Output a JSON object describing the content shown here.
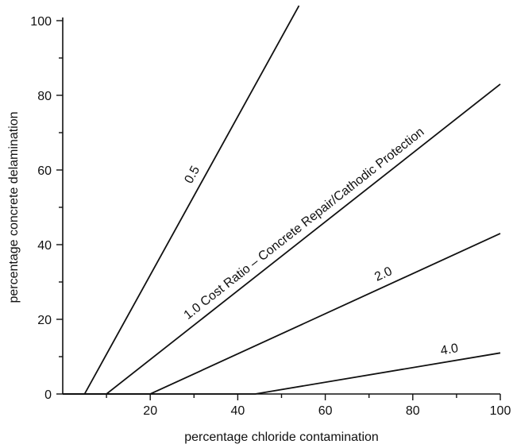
{
  "chart_data": {
    "type": "line",
    "title": "",
    "xlabel": "percentage chloride contamination",
    "ylabel": "percentage concrete delamination",
    "xlim": [
      0,
      100
    ],
    "ylim": [
      0,
      100
    ],
    "x_ticks": [
      20,
      40,
      60,
      80,
      100
    ],
    "y_ticks": [
      0,
      20,
      40,
      60,
      80,
      100
    ],
    "grid": false,
    "series": [
      {
        "name": "0.5",
        "points": [
          [
            0,
            0
          ],
          [
            5,
            0
          ],
          [
            54,
            104
          ]
        ]
      },
      {
        "name": "1.0 Cost Ratio – Concrete Repair/Cathodic Protection",
        "points": [
          [
            0,
            0
          ],
          [
            10,
            0
          ],
          [
            100,
            83
          ]
        ]
      },
      {
        "name": "2.0",
        "points": [
          [
            0,
            0
          ],
          [
            20,
            0
          ],
          [
            100,
            43
          ]
        ]
      },
      {
        "name": "4.0",
        "points": [
          [
            0,
            0
          ],
          [
            44,
            0
          ],
          [
            100,
            11
          ]
        ]
      }
    ]
  }
}
